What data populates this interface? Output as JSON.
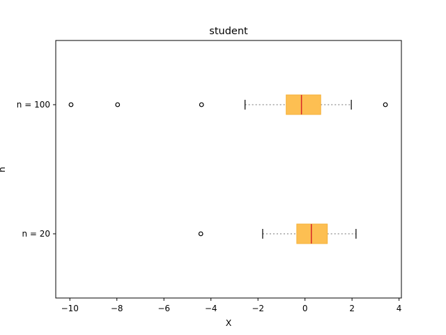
{
  "chart_data": {
    "type": "boxplot",
    "orientation": "horizontal",
    "title": "student",
    "xlabel": "X",
    "ylabel": "n",
    "xlim": [
      -10.6,
      4.1
    ],
    "x_ticks": [
      -10,
      -8,
      -6,
      -4,
      -2,
      0,
      2,
      4
    ],
    "x_tick_labels": [
      "−10",
      "−8",
      "−6",
      "−4",
      "−2",
      "0",
      "2",
      "4"
    ],
    "grid": false,
    "colors": {
      "box_fill": "#fdbf52",
      "box_edge": "#f5b13a",
      "median": "#d62728",
      "whisker": "#a0a0a0",
      "cap": "#000000",
      "flier": "#000000"
    },
    "series": [
      {
        "label": "n = 100",
        "whisker_low": -2.55,
        "q1": -0.8,
        "median": -0.15,
        "q3": 0.67,
        "whisker_high": 1.97,
        "fliers": [
          -9.95,
          -7.97,
          -4.4,
          3.42
        ]
      },
      {
        "label": "n = 20",
        "whisker_low": -1.8,
        "q1": -0.35,
        "median": 0.27,
        "q3": 0.95,
        "whisker_high": 2.17,
        "fliers": [
          -4.43
        ]
      }
    ]
  }
}
